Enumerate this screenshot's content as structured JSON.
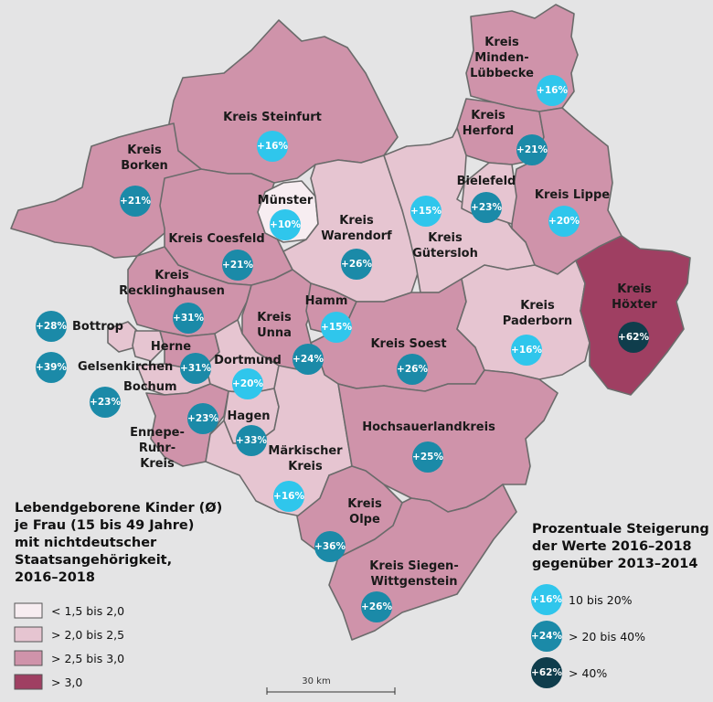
{
  "regions": [
    {
      "name": "Kreis Minden-Lübbecke",
      "lines": [
        "Kreis",
        "Minden-",
        "Lübbecke"
      ],
      "pct": "+16%",
      "cls": "low"
    },
    {
      "name": "Kreis Herford",
      "lines": [
        "Kreis",
        "Herford"
      ],
      "pct": "+21%",
      "cls": "mid"
    },
    {
      "name": "Kreis Steinfurt",
      "lines": [
        "Kreis Steinfurt"
      ],
      "pct": "+16%",
      "cls": "low"
    },
    {
      "name": "Kreis Borken",
      "lines": [
        "Kreis",
        "Borken"
      ],
      "pct": "+21%",
      "cls": "mid"
    },
    {
      "name": "Münster",
      "lines": [
        "Münster"
      ],
      "pct": "+10%",
      "cls": "low"
    },
    {
      "name": "Kreis Warendorf",
      "lines": [
        "Kreis",
        "Warendorf"
      ],
      "pct": "+26%",
      "cls": "mid"
    },
    {
      "name": "Kreis Gütersloh",
      "lines": [
        "Kreis",
        "Gütersloh"
      ],
      "pct": "+15%",
      "cls": "low"
    },
    {
      "name": "Bielefeld",
      "lines": [
        "Bielefeld"
      ],
      "pct": "+23%",
      "cls": "mid"
    },
    {
      "name": "Kreis Lippe",
      "lines": [
        "Kreis Lippe"
      ],
      "pct": "+20%",
      "cls": "low"
    },
    {
      "name": "Kreis Coesfeld",
      "lines": [
        "Kreis Coesfeld"
      ],
      "pct": "+21%",
      "cls": "mid"
    },
    {
      "name": "Kreis Recklinghausen",
      "lines": [
        "Kreis",
        "Recklinghausen"
      ],
      "pct": "+31%",
      "cls": "mid"
    },
    {
      "name": "Kreis Unna",
      "lines": [
        "Kreis",
        "Unna"
      ],
      "pct": "+24%",
      "cls": "mid"
    },
    {
      "name": "Hamm",
      "lines": [
        "Hamm"
      ],
      "pct": "+15%",
      "cls": "low"
    },
    {
      "name": "Kreis Soest",
      "lines": [
        "Kreis Soest"
      ],
      "pct": "+26%",
      "cls": "mid"
    },
    {
      "name": "Kreis Paderborn",
      "lines": [
        "Kreis",
        "Paderborn"
      ],
      "pct": "+16%",
      "cls": "low"
    },
    {
      "name": "Kreis Höxter",
      "lines": [
        "Kreis",
        "Höxter"
      ],
      "pct": "+62%",
      "cls": "high"
    },
    {
      "name": "Bottrop",
      "lines": [
        "Bottrop"
      ],
      "pct": "+28%",
      "cls": "mid"
    },
    {
      "name": "Gelsenkirchen",
      "lines": [
        "Gelsenkirchen"
      ],
      "pct": "+39%",
      "cls": "mid"
    },
    {
      "name": "Herne",
      "lines": [
        "Herne"
      ],
      "pct": "+31%",
      "cls": "mid"
    },
    {
      "name": "Bochum",
      "lines": [
        "Bochum"
      ],
      "pct": "+23%",
      "cls": "mid"
    },
    {
      "name": "Dortmund",
      "lines": [
        "Dortmund"
      ],
      "pct": "+20%",
      "cls": "low"
    },
    {
      "name": "Ennepe-Ruhr-Kreis",
      "lines": [
        "Ennepe-",
        "Ruhr-",
        "Kreis"
      ],
      "pct": "+23%",
      "cls": "mid"
    },
    {
      "name": "Hagen",
      "lines": [
        "Hagen"
      ],
      "pct": "+33%",
      "cls": "mid"
    },
    {
      "name": "Märkischer Kreis",
      "lines": [
        "Märkischer",
        "Kreis"
      ],
      "pct": "+16%",
      "cls": "low"
    },
    {
      "name": "Hochsauerlandkreis",
      "lines": [
        "Hochsauerlandkreis"
      ],
      "pct": "+25%",
      "cls": "mid"
    },
    {
      "name": "Kreis Olpe",
      "lines": [
        "Kreis",
        "Olpe"
      ],
      "pct": "+36%",
      "cls": "mid"
    },
    {
      "name": "Kreis Siegen-Wittgenstein",
      "lines": [
        "Kreis Siegen-",
        "Wittgenstein"
      ],
      "pct": "+26%",
      "cls": "mid"
    }
  ],
  "legend_fill": {
    "title_lines": [
      "Lebendgeborene Kinder (Ø)",
      "je Frau (15 bis 49 Jahre)",
      "mit nichtdeutscher",
      "Staatsangehörigkeit,",
      "2016–2018"
    ],
    "items": [
      {
        "label": "< 1,5 bis 2,0",
        "color": "#f7edf1"
      },
      {
        "label": "> 2,0 bis 2,5",
        "color": "#e6c5d1"
      },
      {
        "label": "> 2,5 bis 3,0",
        "color": "#cf93aa"
      },
      {
        "label": "> 3,0",
        "color": "#9f3f62"
      }
    ]
  },
  "legend_bubble": {
    "title_lines": [
      "Prozentuale Steigerung",
      "der Werte 2016–2018",
      "gegenüber 2013–2014"
    ],
    "items": [
      {
        "pct": "+16%",
        "label": "10 bis 20%",
        "color": "#2fc6ec"
      },
      {
        "pct": "+24%",
        "label": "> 20 bis 40%",
        "color": "#1b8aa8"
      },
      {
        "pct": "+62%",
        "label": "> 40%",
        "color": "#0f3d4c"
      }
    ]
  },
  "scale_label": "30 km"
}
